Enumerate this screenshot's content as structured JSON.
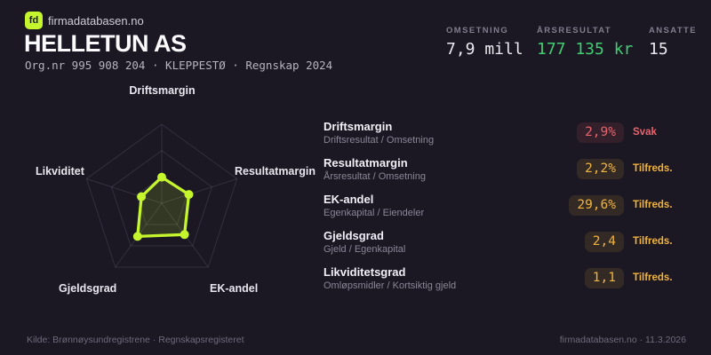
{
  "brand": {
    "logo_text": "fd",
    "site_name": "firmadatabasen.no"
  },
  "header": {
    "company_name": "HELLETUN AS",
    "meta_line": "Org.nr 995 908 204  ·  KLEPPESTØ  ·  Regnskap 2024"
  },
  "stats": [
    {
      "label": "OMSETNING",
      "value": "7,9 mill",
      "color": "#eceaf0"
    },
    {
      "label": "ÅRSRESULTAT",
      "value": "177 135 kr",
      "color": "#3fcf72"
    },
    {
      "label": "ANSATTE",
      "value": "15",
      "color": "#eceaf0"
    }
  ],
  "chart_data": {
    "type": "radar",
    "axes": [
      "Driftsmargin",
      "Resultatmargin",
      "EK-andel",
      "Gjeldsgrad",
      "Likviditet"
    ],
    "values": [
      0.33,
      0.36,
      0.49,
      0.52,
      0.27
    ],
    "max": 1,
    "rings": [
      0.333,
      0.667,
      1
    ],
    "metric_values": [
      "2,9%",
      "2,2%",
      "29,6%",
      "2,4",
      "1,1"
    ],
    "line_color": "#c4f52d",
    "fill_color": "rgba(196,245,45,0.15)",
    "grid_color": "rgba(168,162,186,0.18)",
    "legend": "none",
    "title": ""
  },
  "metrics": {
    "rows": [
      {
        "title": "Driftsmargin",
        "formula": "Driftsresultat / Omsetning",
        "value": "2,9%",
        "status": "Svak",
        "tone": "red"
      },
      {
        "title": "Resultatmargin",
        "formula": "Årsresultat / Omsetning",
        "value": "2,2%",
        "status": "Tilfreds.",
        "tone": "amber"
      },
      {
        "title": "EK-andel",
        "formula": "Egenkapital / Eiendeler",
        "value": "29,6%",
        "status": "Tilfreds.",
        "tone": "amber"
      },
      {
        "title": "Gjeldsgrad",
        "formula": "Gjeld / Egenkapital",
        "value": "2,4",
        "status": "Tilfreds.",
        "tone": "amber"
      },
      {
        "title": "Likviditetsgrad",
        "formula": "Omløpsmidler / Kortsiktig gjeld",
        "value": "1,1",
        "status": "Tilfreds.",
        "tone": "amber"
      }
    ]
  },
  "footer": {
    "source": "Kilde: Brønnøysundregistrene · Regnskapsregisteret",
    "site_date": "firmadatabasen.no · 11.3.2026"
  },
  "colors": {
    "background": "#1b1723",
    "accent_lime": "#c4f52d",
    "status_red": "#e8636c",
    "status_amber": "#f0b43c",
    "value_green": "#3fcf72"
  }
}
